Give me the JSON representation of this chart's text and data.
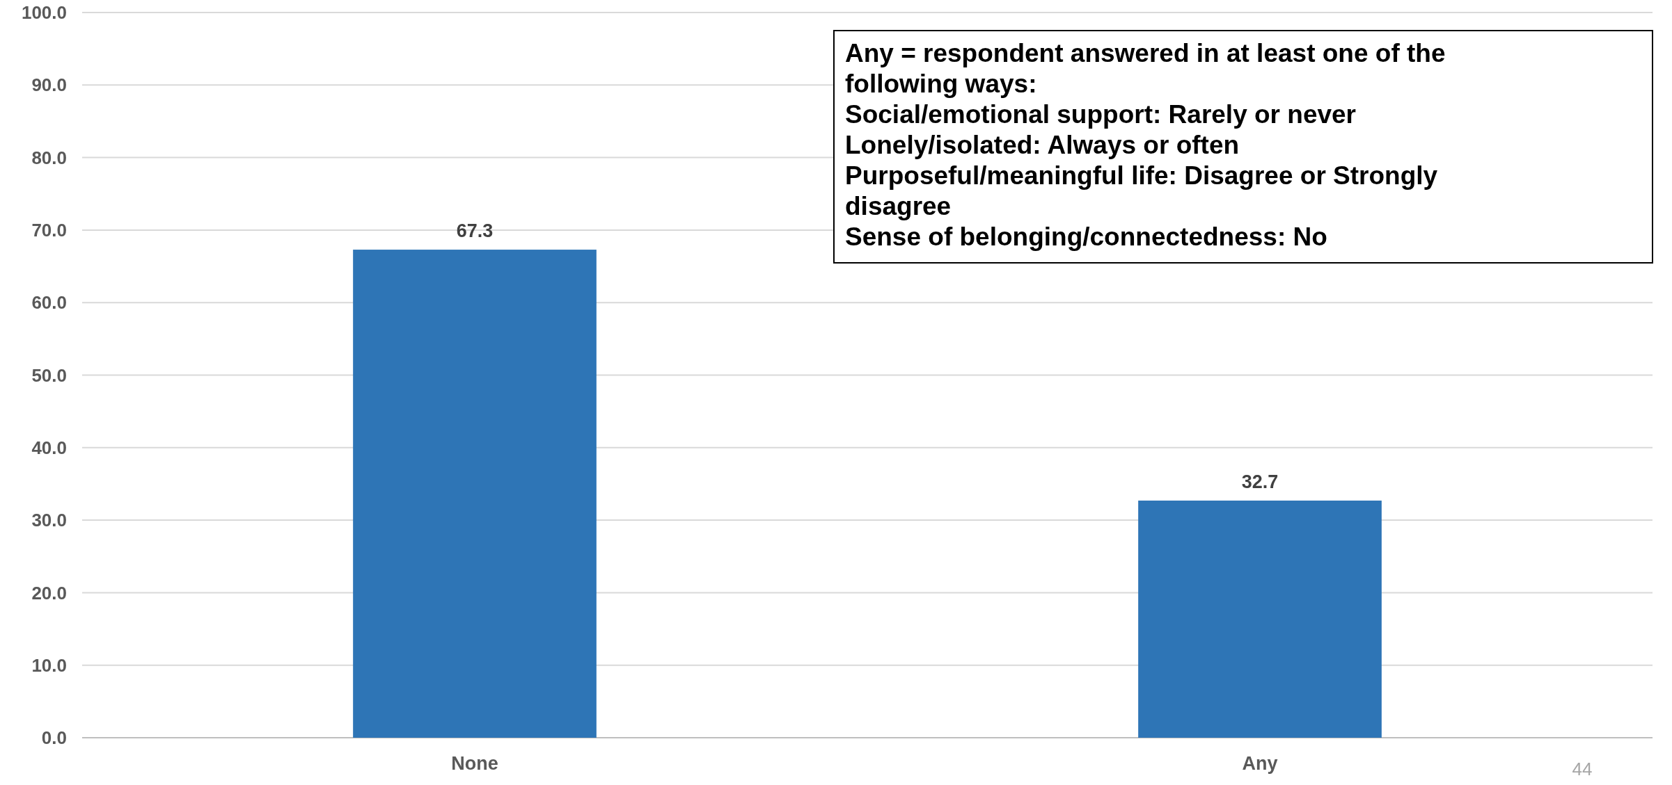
{
  "chart_data": {
    "type": "bar",
    "categories": [
      "None",
      "Any"
    ],
    "values": [
      67.3,
      32.7
    ],
    "color": "#2e75b6",
    "ylim": [
      0,
      100
    ],
    "yticks": [
      {
        "value": 0,
        "label": "0.0"
      },
      {
        "value": 10,
        "label": "10.0"
      },
      {
        "value": 20,
        "label": "20.0"
      },
      {
        "value": 30,
        "label": "30.0"
      },
      {
        "value": 40,
        "label": "40.0"
      },
      {
        "value": 50,
        "label": "50.0"
      },
      {
        "value": 60,
        "label": "60.0"
      },
      {
        "value": 70,
        "label": "70.0"
      },
      {
        "value": 80,
        "label": "80.0"
      },
      {
        "value": 90,
        "label": "90.0"
      },
      {
        "value": 100,
        "label": "100.0"
      }
    ],
    "grid": "y",
    "data_labels": true,
    "annotations": [
      "Any = respondent answered in at least one of the following ways:",
      "Social/emotional support: Rarely or never",
      "Lonely/isolated: Always or often",
      "Purposeful/meaningful life: Disagree or Strongly disagree",
      "Sense of belonging/connectedness: No",
      "44"
    ]
  }
}
